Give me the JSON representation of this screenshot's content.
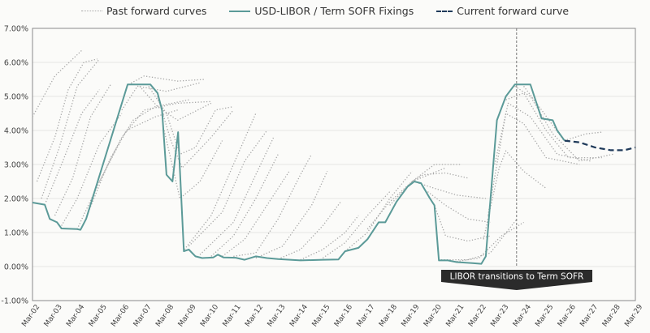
{
  "chart_data": {
    "type": "line",
    "title": "",
    "xlabel": "",
    "ylabel": "",
    "ylim": [
      -1,
      7
    ],
    "xlim": [
      2002,
      2029
    ],
    "yticks": [
      "-1.00%",
      "0.00%",
      "1.00%",
      "2.00%",
      "3.00%",
      "4.00%",
      "5.00%",
      "6.00%",
      "7.00%"
    ],
    "ytick_values": [
      -1,
      0,
      1,
      2,
      3,
      4,
      5,
      6,
      7
    ],
    "xticks": [
      "Mar-02",
      "Mar-03",
      "Mar-04",
      "Mar-05",
      "Mar-06",
      "Mar-07",
      "Mar-08",
      "Mar-09",
      "Mar-10",
      "Mar-11",
      "Mar-12",
      "Mar-13",
      "Mar-14",
      "Mar-15",
      "Mar-16",
      "Mar-17",
      "Mar-18",
      "Mar-19",
      "Mar-20",
      "Mar-21",
      "Mar-22",
      "Mar-23",
      "Mar-24",
      "Mar-25",
      "Mar-26",
      "Mar-27",
      "Mar-28",
      "Mar-29"
    ],
    "grid": true,
    "legend_position": "top-center",
    "legend": [
      "Past forward curves",
      "USD-LIBOR / Term SOFR Fixings",
      "Current forward curve"
    ],
    "colors": {
      "fixings": "#5b9a98",
      "forward": "#1f3a5a",
      "past": "#a8a8a8",
      "annotation_bg": "#2b2b2b"
    },
    "annotation": {
      "text": "LIBOR transitions to Term SOFR",
      "x": 2023.68
    },
    "series": [
      {
        "name": "USD-LIBOR / Term SOFR Fixings",
        "points": [
          [
            2002,
            1.88
          ],
          [
            2002.55,
            1.82
          ],
          [
            2002.77,
            1.4
          ],
          [
            2003.1,
            1.3
          ],
          [
            2003.3,
            1.12
          ],
          [
            2004,
            1.1
          ],
          [
            2004.15,
            1.08
          ],
          [
            2004.4,
            1.4
          ],
          [
            2006.26,
            5.35
          ],
          [
            2007.28,
            5.35
          ],
          [
            2007.6,
            5.1
          ],
          [
            2007.8,
            4.6
          ],
          [
            2008.0,
            2.7
          ],
          [
            2008.27,
            2.5
          ],
          [
            2008.52,
            3.95
          ],
          [
            2008.78,
            0.45
          ],
          [
            2009.0,
            0.5
          ],
          [
            2009.3,
            0.3
          ],
          [
            2009.6,
            0.25
          ],
          [
            2010.1,
            0.27
          ],
          [
            2010.3,
            0.35
          ],
          [
            2010.55,
            0.27
          ],
          [
            2011.1,
            0.26
          ],
          [
            2011.5,
            0.2
          ],
          [
            2012,
            0.3
          ],
          [
            2012.5,
            0.25
          ],
          [
            2013,
            0.22
          ],
          [
            2014,
            0.18
          ],
          [
            2015,
            0.2
          ],
          [
            2015.7,
            0.21
          ],
          [
            2016,
            0.45
          ],
          [
            2016.6,
            0.55
          ],
          [
            2017,
            0.8
          ],
          [
            2017.5,
            1.3
          ],
          [
            2017.8,
            1.3
          ],
          [
            2018.3,
            1.9
          ],
          [
            2018.8,
            2.35
          ],
          [
            2019.1,
            2.5
          ],
          [
            2019.4,
            2.45
          ],
          [
            2019.8,
            2.0
          ],
          [
            2020.0,
            1.8
          ],
          [
            2020.2,
            0.18
          ],
          [
            2020.6,
            0.18
          ],
          [
            2021,
            0.13
          ],
          [
            2021.7,
            0.1
          ],
          [
            2022.1,
            0.08
          ],
          [
            2022.3,
            0.3
          ],
          [
            2022.8,
            4.3
          ],
          [
            2023.2,
            5.0
          ],
          [
            2023.6,
            5.35
          ],
          [
            2024.3,
            5.35
          ],
          [
            2024.8,
            4.35
          ],
          [
            2025.3,
            4.3
          ],
          [
            2025.5,
            4.0
          ],
          [
            2025.83,
            3.7
          ]
        ]
      },
      {
        "name": "Current forward curve",
        "points": [
          [
            2025.83,
            3.7
          ],
          [
            2026.5,
            3.65
          ],
          [
            2027.2,
            3.5
          ],
          [
            2027.9,
            3.42
          ],
          [
            2028.5,
            3.42
          ],
          [
            2029,
            3.5
          ]
        ]
      }
    ],
    "past_curves": [
      [
        [
          2002,
          4.4
        ],
        [
          2003,
          5.6
        ],
        [
          2004.2,
          6.35
        ]
      ],
      [
        [
          2002.2,
          2.5
        ],
        [
          2003,
          3.8
        ],
        [
          2003.6,
          5.2
        ],
        [
          2004.3,
          6.0
        ],
        [
          2004.9,
          6.1
        ]
      ],
      [
        [
          2002.4,
          2.0
        ],
        [
          2003.2,
          3.5
        ],
        [
          2004,
          5.3
        ],
        [
          2005,
          6.1
        ]
      ],
      [
        [
          2002.6,
          1.9
        ],
        [
          2003.3,
          3.0
        ],
        [
          2004.2,
          4.5
        ],
        [
          2005,
          5.2
        ]
      ],
      [
        [
          2003,
          1.5
        ],
        [
          2003.8,
          2.6
        ],
        [
          2004.6,
          4.4
        ],
        [
          2005.5,
          5.35
        ]
      ],
      [
        [
          2003.3,
          1.2
        ],
        [
          2004,
          2.0
        ],
        [
          2005,
          3.6
        ],
        [
          2006,
          4.5
        ]
      ],
      [
        [
          2004,
          1.1
        ],
        [
          2005,
          2.5
        ],
        [
          2006.2,
          4.0
        ],
        [
          2007.5,
          4.4
        ],
        [
          2008.5,
          4.6
        ]
      ],
      [
        [
          2004.5,
          1.6
        ],
        [
          2005.5,
          3.2
        ],
        [
          2006.5,
          4.3
        ],
        [
          2007.5,
          4.7
        ],
        [
          2009,
          4.9
        ]
      ],
      [
        [
          2005,
          2.5
        ],
        [
          2006,
          3.8
        ],
        [
          2007,
          4.6
        ],
        [
          2008.5,
          4.8
        ],
        [
          2010,
          4.85
        ]
      ],
      [
        [
          2006,
          4.6
        ],
        [
          2006.7,
          5.3
        ],
        [
          2008,
          5.15
        ],
        [
          2009.5,
          5.4
        ]
      ],
      [
        [
          2006.3,
          5.35
        ],
        [
          2007,
          5.6
        ],
        [
          2008.5,
          5.45
        ],
        [
          2009.7,
          5.5
        ]
      ],
      [
        [
          2006.8,
          5.3
        ],
        [
          2007.6,
          4.7
        ],
        [
          2008.5,
          4.3
        ],
        [
          2010,
          4.8
        ]
      ],
      [
        [
          2007.2,
          5.3
        ],
        [
          2008,
          4.5
        ],
        [
          2008.6,
          3.3
        ],
        [
          2009.3,
          3.5
        ],
        [
          2010.2,
          4.6
        ],
        [
          2011,
          4.7
        ]
      ],
      [
        [
          2007.6,
          5.0
        ],
        [
          2008.2,
          3.7
        ],
        [
          2008.7,
          2.9
        ],
        [
          2010,
          3.8
        ],
        [
          2011,
          4.6
        ]
      ],
      [
        [
          2007.9,
          4.0
        ],
        [
          2008.6,
          2.0
        ],
        [
          2009.5,
          2.5
        ],
        [
          2010.5,
          3.7
        ]
      ],
      [
        [
          2008.8,
          0.5
        ],
        [
          2010,
          1.5
        ],
        [
          2011,
          3.0
        ],
        [
          2012,
          4.5
        ]
      ],
      [
        [
          2009,
          0.6
        ],
        [
          2010.5,
          1.6
        ],
        [
          2011.5,
          3.1
        ],
        [
          2012.5,
          4.0
        ]
      ],
      [
        [
          2009.5,
          0.35
        ],
        [
          2011,
          1.3
        ],
        [
          2012,
          2.7
        ],
        [
          2012.8,
          3.8
        ]
      ],
      [
        [
          2010,
          0.3
        ],
        [
          2011,
          0.9
        ],
        [
          2012,
          2.0
        ],
        [
          2013,
          3.3
        ]
      ],
      [
        [
          2010.5,
          0.3
        ],
        [
          2011.5,
          0.8
        ],
        [
          2012.5,
          1.8
        ],
        [
          2013.5,
          2.8
        ]
      ],
      [
        [
          2011,
          0.3
        ],
        [
          2012,
          0.4
        ],
        [
          2013,
          1.4
        ],
        [
          2014,
          2.7
        ],
        [
          2014.5,
          3.3
        ]
      ],
      [
        [
          2012,
          0.25
        ],
        [
          2013.2,
          0.6
        ],
        [
          2014.5,
          1.8
        ],
        [
          2015.2,
          2.8
        ]
      ],
      [
        [
          2013,
          0.22
        ],
        [
          2014,
          0.5
        ],
        [
          2015,
          1.2
        ],
        [
          2015.8,
          1.9
        ]
      ],
      [
        [
          2014,
          0.2
        ],
        [
          2015,
          0.5
        ],
        [
          2016,
          1.0
        ],
        [
          2016.6,
          1.5
        ]
      ],
      [
        [
          2015,
          0.25
        ],
        [
          2016,
          0.7
        ],
        [
          2017,
          1.5
        ],
        [
          2018,
          2.2
        ]
      ],
      [
        [
          2016,
          0.45
        ],
        [
          2017,
          1.0
        ],
        [
          2018,
          2.0
        ],
        [
          2019,
          2.8
        ]
      ],
      [
        [
          2017,
          1.1
        ],
        [
          2018,
          1.9
        ],
        [
          2019,
          2.5
        ],
        [
          2020.5,
          2.9
        ]
      ],
      [
        [
          2018,
          1.8
        ],
        [
          2019,
          2.5
        ],
        [
          2020,
          3.0
        ],
        [
          2021.2,
          3.0
        ]
      ],
      [
        [
          2019,
          2.5
        ],
        [
          2019.5,
          2.7
        ],
        [
          2020.5,
          2.75
        ],
        [
          2021.5,
          2.6
        ]
      ],
      [
        [
          2019.3,
          2.45
        ],
        [
          2020,
          2.3
        ],
        [
          2021,
          2.1
        ],
        [
          2022.3,
          2.0
        ]
      ],
      [
        [
          2019.7,
          2.2
        ],
        [
          2020.5,
          1.8
        ],
        [
          2021.5,
          1.4
        ],
        [
          2022.5,
          1.3
        ]
      ],
      [
        [
          2020,
          1.8
        ],
        [
          2020.5,
          0.9
        ],
        [
          2021.5,
          0.75
        ],
        [
          2022.5,
          0.9
        ]
      ],
      [
        [
          2020.3,
          0.2
        ],
        [
          2021.5,
          0.2
        ],
        [
          2022.5,
          0.4
        ],
        [
          2023.7,
          1.4
        ]
      ],
      [
        [
          2021,
          0.15
        ],
        [
          2022,
          0.25
        ],
        [
          2023,
          0.9
        ],
        [
          2024,
          1.3
        ]
      ],
      [
        [
          2022.2,
          0.8
        ],
        [
          2022.9,
          2.9
        ],
        [
          2023.2,
          3.4
        ],
        [
          2024,
          2.8
        ],
        [
          2025,
          2.3
        ]
      ],
      [
        [
          2022.4,
          1.5
        ],
        [
          2023.2,
          4.5
        ],
        [
          2024,
          4.2
        ],
        [
          2025,
          3.2
        ],
        [
          2026.5,
          3.0
        ]
      ],
      [
        [
          2022.7,
          3.0
        ],
        [
          2023.3,
          4.8
        ],
        [
          2024.3,
          4.4
        ],
        [
          2025.5,
          3.3
        ],
        [
          2027,
          3.1
        ]
      ],
      [
        [
          2023.2,
          4.9
        ],
        [
          2024,
          5.1
        ],
        [
          2025,
          4.0
        ],
        [
          2026,
          3.2
        ],
        [
          2027.5,
          3.2
        ]
      ],
      [
        [
          2023.6,
          5.3
        ],
        [
          2024.3,
          5.0
        ],
        [
          2025.3,
          3.9
        ],
        [
          2026.5,
          3.1
        ],
        [
          2028,
          3.3
        ]
      ],
      [
        [
          2024,
          5.3
        ],
        [
          2024.8,
          4.6
        ],
        [
          2025.8,
          3.7
        ],
        [
          2026.8,
          3.9
        ],
        [
          2027.5,
          3.95
        ]
      ]
    ]
  }
}
